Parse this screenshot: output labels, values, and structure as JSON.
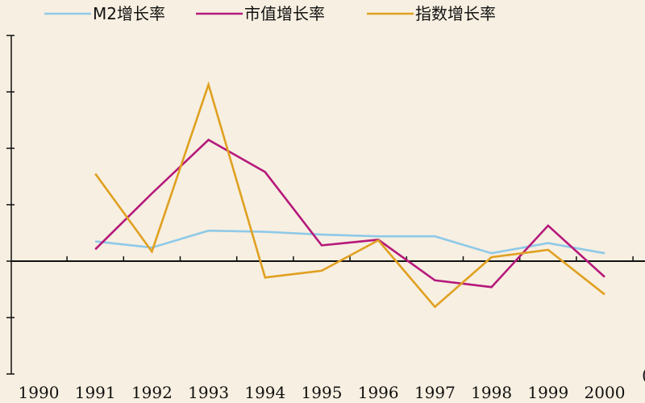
{
  "chart_data": {
    "type": "line",
    "x": [
      "1990",
      "1991",
      "1992",
      "1993",
      "1994",
      "1995",
      "1996",
      "1997",
      "1998",
      "1999",
      "2000"
    ],
    "ylim": [
      -200,
      400
    ],
    "series": [
      {
        "name": "M2增长率",
        "color": "#8ec9e8",
        "values": [
          null,
          35,
          24,
          54,
          52,
          47,
          44,
          44,
          14,
          32,
          14
        ]
      },
      {
        "name": "市值增长率",
        "color": "#b5197c",
        "values": [
          null,
          21,
          120,
          215,
          158,
          28,
          38,
          -34,
          -46,
          63,
          -28
        ]
      },
      {
        "name": "指数增长率",
        "color": "#e0a020",
        "values": [
          null,
          155,
          17,
          313,
          -29,
          -17,
          37,
          -81,
          7,
          20,
          -59
        ]
      }
    ],
    "xtick_partial": "("
  }
}
